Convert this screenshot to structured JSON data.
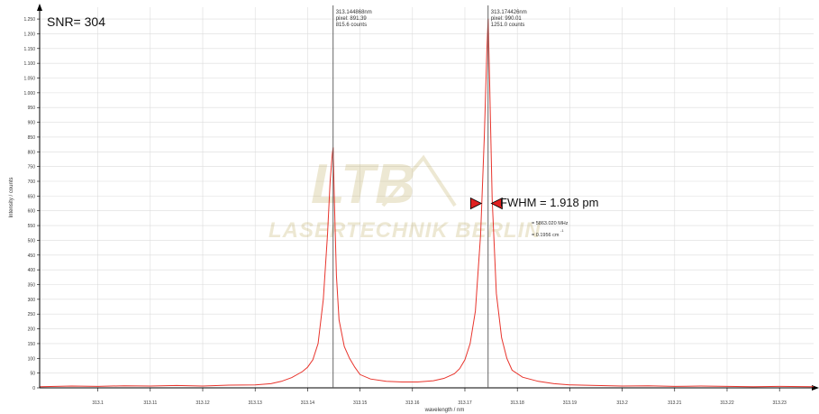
{
  "snr_label": "SNR= 304",
  "watermark": {
    "line1": "LTB",
    "line2": "LASERTECHNIK BERLIN"
  },
  "cursors": [
    {
      "x": 313.144868,
      "lines": [
        "313.144868nm",
        "pixel:  891.39",
        "815.6 counts"
      ]
    },
    {
      "x": 313.174426,
      "lines": [
        "313.174426nm",
        "pixel:  990.01",
        "1251.0 counts"
      ]
    }
  ],
  "fwhm": {
    "label": "FWHM = 1.918 pm",
    "freq": "= 5863.020 MHz",
    "wavenumber": "= 0.1956 cm",
    "wavenumber_sup": "-1",
    "left_marker_x": 313.17315,
    "right_marker_x": 313.17505,
    "y": 625,
    "marker_color": "#e02020"
  },
  "chart_data": {
    "type": "line",
    "title": "",
    "xlabel": "wavelength / nm",
    "ylabel": "Intensity / counts",
    "xlim": [
      313.0889,
      313.2365
    ],
    "ylim": [
      0,
      1290
    ],
    "x_ticks": [
      313.1,
      313.11,
      313.12,
      313.13,
      313.14,
      313.15,
      313.16,
      313.17,
      313.18,
      313.19,
      313.2,
      313.21,
      313.22,
      313.23
    ],
    "x_tick_labels": [
      "313.1",
      "313.11",
      "313.12",
      "313.13",
      "313.14",
      "313.15",
      "313.16",
      "313.17",
      "313.18",
      "313.19",
      "313.2",
      "313.21",
      "313.22",
      "313.23"
    ],
    "y_ticks": [
      0,
      50,
      100,
      150,
      200,
      250,
      300,
      350,
      400,
      450,
      500,
      550,
      600,
      650,
      700,
      750,
      800,
      850,
      900,
      950,
      1000,
      1050,
      1100,
      1150,
      1200,
      1250
    ],
    "y_tick_labels": [
      "0",
      "50",
      "100",
      "150",
      "200",
      "250",
      "300",
      "350",
      "400",
      "450",
      "500",
      "550",
      "600",
      "650",
      "700",
      "750",
      "800",
      "850",
      "900",
      "950",
      "1.000",
      "1.050",
      "1.100",
      "1.150",
      "1.200",
      "1.250"
    ],
    "grid": true,
    "series_color": "#e8342c",
    "series": [
      {
        "x": [
          313.089,
          313.095,
          313.1,
          313.105,
          313.11,
          313.115,
          313.12,
          313.125,
          313.13,
          313.133,
          313.135,
          313.137,
          313.139,
          313.14,
          313.141,
          313.142,
          313.143,
          313.1438,
          313.1443,
          313.1447,
          313.14487,
          313.1451,
          313.1455,
          313.146,
          313.147,
          313.148,
          313.149,
          313.15,
          313.152,
          313.155,
          313.158,
          313.161,
          313.164,
          313.166,
          313.168,
          313.169,
          313.17,
          313.171,
          313.172,
          313.173,
          313.1737,
          313.1742,
          313.17443,
          313.1747,
          313.1752,
          313.176,
          313.177,
          313.178,
          313.179,
          313.181,
          313.184,
          313.187,
          313.19,
          313.195,
          313.2,
          313.205,
          313.21,
          313.215,
          313.22,
          313.225,
          313.23,
          313.2365
        ],
        "y": [
          4,
          6,
          5,
          7,
          6,
          8,
          6,
          9,
          10,
          14,
          22,
          35,
          55,
          70,
          95,
          150,
          300,
          520,
          700,
          790,
          815,
          640,
          380,
          230,
          140,
          100,
          70,
          45,
          30,
          22,
          20,
          20,
          24,
          32,
          48,
          65,
          95,
          150,
          260,
          520,
          850,
          1150,
          1251,
          1050,
          640,
          320,
          170,
          100,
          60,
          36,
          22,
          14,
          10,
          8,
          6,
          7,
          5,
          6,
          5,
          4,
          5,
          4
        ]
      }
    ]
  }
}
